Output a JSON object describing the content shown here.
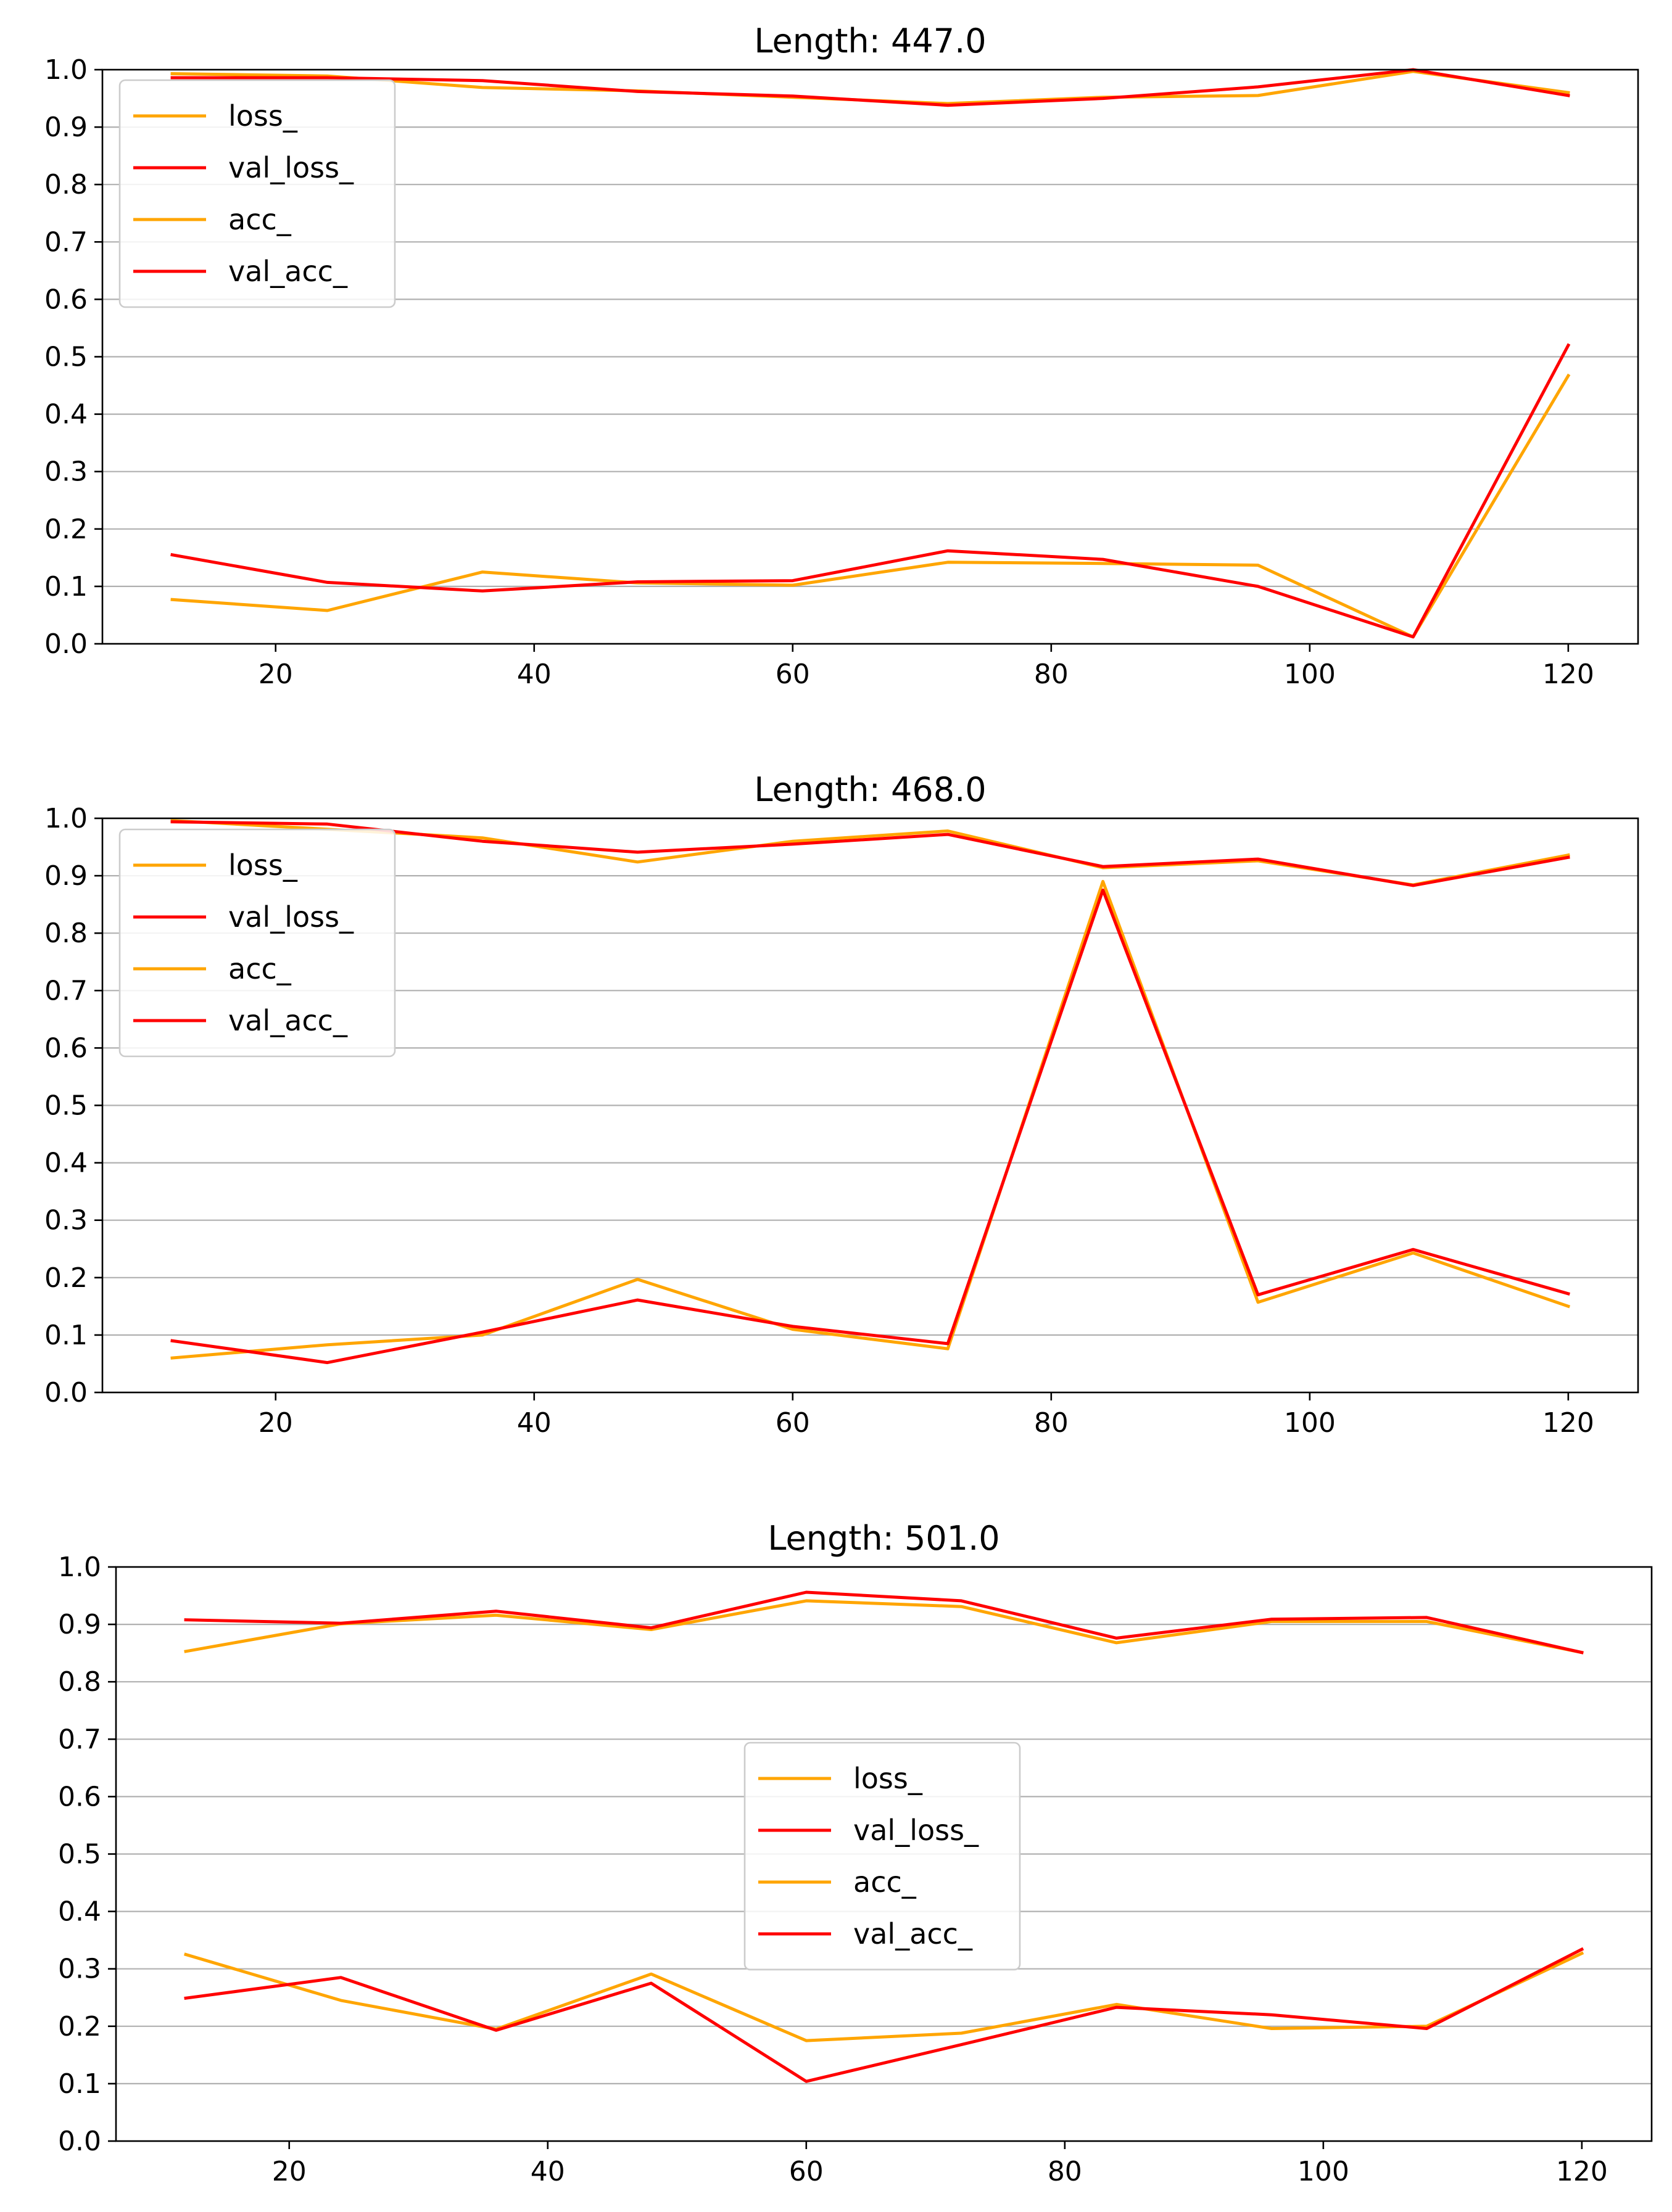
{
  "chart_data": [
    {
      "type": "line",
      "title": "Length: 447.0",
      "xlabel": "",
      "ylabel": "",
      "xlim": [
        6.6,
        125.4
      ],
      "ylim": [
        0.0,
        1.0
      ],
      "grid": "y",
      "legend_position": "upper-left",
      "x_ticks": [
        20,
        40,
        60,
        80,
        100,
        120
      ],
      "y_ticks": [
        0.0,
        0.1,
        0.2,
        0.3,
        0.4,
        0.5,
        0.6,
        0.7,
        0.8,
        0.9,
        1.0
      ],
      "x_tick_labels": [
        "20",
        "40",
        "60",
        "80",
        "100",
        "120"
      ],
      "y_tick_labels": [
        "0.0",
        "0.1",
        "0.2",
        "0.3",
        "0.4",
        "0.5",
        "0.6",
        "0.7",
        "0.8",
        "0.9",
        "1.0"
      ],
      "x": [
        12,
        24,
        36,
        48,
        60,
        72,
        84,
        96,
        108,
        120
      ],
      "series": [
        {
          "name": "loss_",
          "color": "#FFA500",
          "values": [
            0.077,
            0.058,
            0.125,
            0.106,
            0.102,
            0.142,
            0.14,
            0.137,
            0.012,
            0.467
          ]
        },
        {
          "name": "val_loss_",
          "color": "#FF0000",
          "values": [
            0.155,
            0.107,
            0.092,
            0.108,
            0.11,
            0.162,
            0.147,
            0.1,
            0.012,
            0.52
          ]
        },
        {
          "name": "acc_",
          "color": "#FFA500",
          "values": [
            0.993,
            0.989,
            0.969,
            0.963,
            0.952,
            0.941,
            0.952,
            0.955,
            0.997,
            0.96
          ]
        },
        {
          "name": "val_acc_",
          "color": "#FF0000",
          "values": [
            0.986,
            0.986,
            0.981,
            0.962,
            0.954,
            0.938,
            0.95,
            0.97,
            1.0,
            0.955
          ]
        }
      ]
    },
    {
      "type": "line",
      "title": "Length: 468.0",
      "xlabel": "",
      "ylabel": "",
      "xlim": [
        6.6,
        125.4
      ],
      "ylim": [
        0.0,
        1.0
      ],
      "grid": "y",
      "legend_position": "upper-left",
      "x_ticks": [
        20,
        40,
        60,
        80,
        100,
        120
      ],
      "y_ticks": [
        0.0,
        0.1,
        0.2,
        0.3,
        0.4,
        0.5,
        0.6,
        0.7,
        0.8,
        0.9,
        1.0
      ],
      "x_tick_labels": [
        "20",
        "40",
        "60",
        "80",
        "100",
        "120"
      ],
      "y_tick_labels": [
        "0.0",
        "0.1",
        "0.2",
        "0.3",
        "0.4",
        "0.5",
        "0.6",
        "0.7",
        "0.8",
        "0.9",
        "1.0"
      ],
      "x": [
        12,
        24,
        36,
        48,
        60,
        72,
        84,
        96,
        108,
        120
      ],
      "series": [
        {
          "name": "loss_",
          "color": "#FFA500",
          "values": [
            0.06,
            0.083,
            0.1,
            0.197,
            0.11,
            0.076,
            0.89,
            0.157,
            0.243,
            0.15
          ]
        },
        {
          "name": "val_loss_",
          "color": "#FF0000",
          "values": [
            0.09,
            0.052,
            0.105,
            0.161,
            0.115,
            0.085,
            0.875,
            0.17,
            0.249,
            0.172
          ]
        },
        {
          "name": "acc_",
          "color": "#FFA500",
          "values": [
            0.996,
            0.981,
            0.966,
            0.924,
            0.96,
            0.978,
            0.914,
            0.926,
            0.884,
            0.936
          ]
        },
        {
          "name": "val_acc_",
          "color": "#FF0000",
          "values": [
            0.994,
            0.99,
            0.96,
            0.941,
            0.955,
            0.972,
            0.916,
            0.929,
            0.883,
            0.932
          ]
        }
      ]
    },
    {
      "type": "line",
      "title": "Length: 501.0",
      "xlabel": "",
      "ylabel": "",
      "xlim": [
        6.6,
        125.4
      ],
      "ylim": [
        0.0,
        1.0
      ],
      "grid": "y",
      "legend_position": "center",
      "x_ticks": [
        20,
        40,
        60,
        80,
        100,
        120
      ],
      "y_ticks": [
        0.0,
        0.1,
        0.2,
        0.3,
        0.4,
        0.5,
        0.6,
        0.7,
        0.8,
        0.9,
        1.0
      ],
      "x_tick_labels": [
        "20",
        "40",
        "60",
        "80",
        "100",
        "120"
      ],
      "y_tick_labels": [
        "0.0",
        "0.1",
        "0.2",
        "0.3",
        "0.4",
        "0.5",
        "0.6",
        "0.7",
        "0.8",
        "0.9",
        "1.0"
      ],
      "x": [
        12,
        24,
        36,
        48,
        60,
        72,
        84,
        96,
        108,
        120
      ],
      "series": [
        {
          "name": "loss_",
          "color": "#FFA500",
          "values": [
            0.325,
            0.245,
            0.195,
            0.291,
            0.175,
            0.188,
            0.238,
            0.196,
            0.2,
            0.327
          ]
        },
        {
          "name": "val_loss_",
          "color": "#FF0000",
          "values": [
            0.249,
            0.285,
            0.193,
            0.275,
            0.104,
            0.168,
            0.233,
            0.22,
            0.196,
            0.334
          ]
        },
        {
          "name": "acc_",
          "color": "#FFA500",
          "values": [
            0.853,
            0.901,
            0.916,
            0.891,
            0.941,
            0.931,
            0.868,
            0.905,
            0.905,
            0.851
          ]
        },
        {
          "name": "val_acc_",
          "color": "#FF0000",
          "values": [
            0.908,
            0.902,
            0.923,
            0.894,
            0.956,
            0.941,
            0.876,
            0.909,
            0.912,
            0.851
          ]
        }
      ]
    }
  ]
}
